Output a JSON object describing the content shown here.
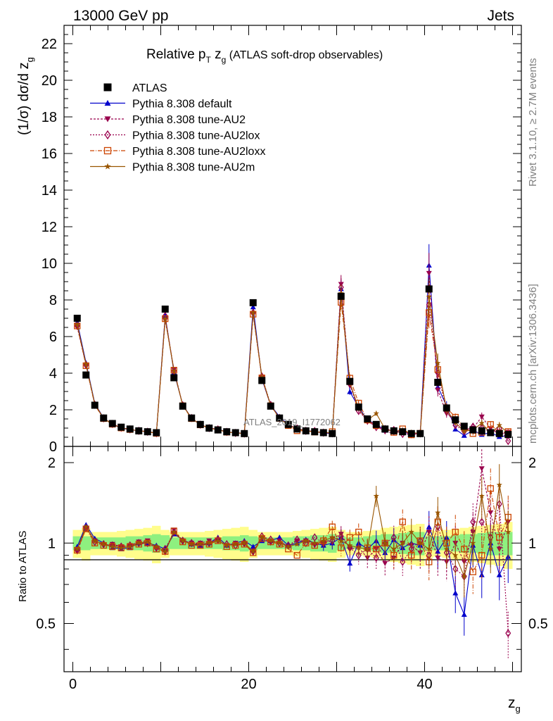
{
  "header": {
    "energy_label": "13000 GeV pp",
    "category_label": "Jets",
    "rivet_label": "Rivet 3.1.10, ≥ 2.7M events",
    "mcplots_label": "mcplots.cern.ch [arXiv:1306.3436]",
    "analysis_id": "ATLAS_2019_I1772062"
  },
  "chart_data": {
    "type": "line",
    "title_main": "Relative p",
    "title_sub_T": "T",
    "title_z": " z",
    "title_sub_g": "g",
    "title_paren": " (ATLAS soft-drop observables)",
    "ylabel": "(1/σ) dσ/d z",
    "ylabel_sub": "g",
    "xlabel": "z",
    "xlabel_sub": "g",
    "ratio_ylabel": "Ratio to ATLAS",
    "xlim": [
      -1,
      51
    ],
    "ylim": [
      0,
      23
    ],
    "ratio_ylim": [
      0.33,
      2.3
    ],
    "main_yticks": [
      "0",
      "2",
      "4",
      "6",
      "8",
      "10",
      "12",
      "14",
      "16",
      "18",
      "20",
      "22"
    ],
    "xticks": [
      "0",
      "20",
      "40"
    ],
    "ratio_yticks": [
      "0.5",
      "1",
      "2"
    ],
    "x": [
      0.5,
      1.5,
      2.5,
      3.5,
      4.5,
      5.5,
      6.5,
      7.5,
      8.5,
      9.5,
      10.5,
      11.5,
      12.5,
      13.5,
      14.5,
      15.5,
      16.5,
      17.5,
      18.5,
      19.5,
      20.5,
      21.5,
      22.5,
      23.5,
      24.5,
      25.5,
      26.5,
      27.5,
      28.5,
      29.5,
      30.5,
      31.5,
      32.5,
      33.5,
      34.5,
      35.5,
      36.5,
      37.5,
      38.5,
      39.5,
      40.5,
      41.5,
      42.5,
      43.5,
      44.5,
      45.5,
      46.5,
      47.5,
      48.5,
      49.5
    ],
    "data_series": {
      "name": "ATLAS",
      "values": [
        7.0,
        3.9,
        2.25,
        1.55,
        1.25,
        1.05,
        0.95,
        0.85,
        0.8,
        0.75,
        7.5,
        3.75,
        2.2,
        1.55,
        1.2,
        1.0,
        0.9,
        0.8,
        0.75,
        0.7,
        7.85,
        3.6,
        2.2,
        1.55,
        1.2,
        0.95,
        0.85,
        0.8,
        0.75,
        0.7,
        8.2,
        3.55,
        2.15,
        1.5,
        1.2,
        0.95,
        0.85,
        0.8,
        0.7,
        0.7,
        8.6,
        3.5,
        2.1,
        1.45,
        1.1,
        0.9,
        0.85,
        0.75,
        0.7,
        0.65
      ]
    },
    "series": [
      {
        "name": "Pythia 8.308 default",
        "color": "#0000cc",
        "marker": "triangle-up",
        "dash": "",
        "ratio": [
          0.97,
          1.17,
          1.04,
          1.0,
          0.96,
          0.95,
          0.96,
          1.0,
          1.0,
          0.98,
          0.95,
          1.08,
          1.03,
          0.99,
          0.98,
          1.0,
          1.05,
          0.98,
          1.0,
          1.02,
          0.97,
          1.02,
          1.02,
          1.05,
          0.98,
          1.0,
          1.03,
          1.0,
          0.98,
          1.0,
          1.05,
          0.84,
          1.0,
          0.95,
          1.02,
          0.92,
          1.03,
          0.96,
          1.0,
          0.98,
          1.15,
          0.93,
          1.05,
          0.65,
          0.54,
          0.98,
          0.76,
          1.0,
          0.76,
          0.89
        ]
      },
      {
        "name": "Pythia 8.308 tune-AU2",
        "color": "#99004d",
        "marker": "triangle-down",
        "dash": "3,2",
        "ratio": [
          0.93,
          1.14,
          1.02,
          0.98,
          0.99,
          0.97,
          0.98,
          1.01,
          1.02,
          0.96,
          0.92,
          1.12,
          1.02,
          1.0,
          1.0,
          1.02,
          1.02,
          0.98,
          1.0,
          0.99,
          0.92,
          1.04,
          1.0,
          1.02,
          0.97,
          1.02,
          1.02,
          0.98,
          1.0,
          1.04,
          1.08,
          0.95,
          0.96,
          0.88,
          0.95,
          0.84,
          0.88,
          1.0,
          0.98,
          0.92,
          1.1,
          0.88,
          0.85,
          1.0,
          0.85,
          1.1,
          1.9,
          1.3,
          0.95,
          1.2
        ]
      },
      {
        "name": "Pythia 8.308 tune-AU2lox",
        "color": "#99004d",
        "marker": "diamond-open",
        "dash": "2,2",
        "ratio": [
          0.94,
          1.14,
          1.01,
          0.99,
          0.98,
          0.97,
          0.98,
          1.0,
          1.0,
          0.96,
          0.95,
          1.1,
          1.02,
          1.0,
          0.99,
          1.0,
          1.03,
          0.99,
          0.98,
          1.0,
          0.93,
          1.06,
          1.03,
          1.0,
          0.98,
          1.03,
          1.0,
          1.05,
          1.0,
          1.02,
          1.06,
          0.96,
          0.9,
          0.95,
          0.88,
          1.0,
          1.05,
          0.85,
          0.95,
          1.02,
          0.9,
          1.15,
          0.92,
          0.8,
          0.75,
          1.2,
          1.2,
          1.05,
          1.4,
          0.46
        ]
      },
      {
        "name": "Pythia 8.308 tune-AU2loxx",
        "color": "#cc4400",
        "marker": "square-open",
        "dash": "6,2,1,2",
        "ratio": [
          0.94,
          1.13,
          1.0,
          0.98,
          0.97,
          0.96,
          0.97,
          0.99,
          1.0,
          0.95,
          0.93,
          1.11,
          1.01,
          0.98,
          0.98,
          0.99,
          1.02,
          0.97,
          0.98,
          0.99,
          0.92,
          1.04,
          1.01,
          0.99,
          0.95,
          0.9,
          1.0,
          0.98,
          1.02,
          1.15,
          0.96,
          1.05,
          1.1,
          0.96,
          0.95,
          1.0,
          0.9,
          1.2,
          0.9,
          1.02,
          0.85,
          1.2,
          1.0,
          1.1,
          0.95,
          0.78,
          0.9,
          1.6,
          1.05,
          1.25
        ]
      },
      {
        "name": "Pythia 8.308 tune-AU2m",
        "color": "#995500",
        "marker": "star",
        "dash": "",
        "ratio": [
          0.95,
          1.15,
          1.02,
          0.99,
          0.97,
          0.96,
          0.97,
          1.0,
          1.01,
          0.97,
          0.93,
          1.1,
          1.02,
          0.99,
          0.99,
          1.0,
          1.02,
          0.98,
          0.99,
          1.0,
          0.93,
          1.05,
          1.02,
          1.0,
          0.97,
          0.99,
          1.02,
          1.0,
          1.02,
          1.05,
          1.02,
          0.98,
          0.96,
          0.95,
          1.5,
          1.0,
          0.95,
          1.0,
          1.1,
          1.0,
          0.95,
          1.3,
          0.95,
          0.9,
          0.75,
          1.0,
          1.5,
          0.95,
          1.65,
          1.1
        ]
      }
    ],
    "ratio_error_band": {
      "inner": [
        0.06,
        0.06,
        0.05,
        0.05,
        0.05,
        0.05,
        0.06,
        0.06,
        0.07,
        0.08,
        0.07,
        0.05,
        0.05,
        0.05,
        0.05,
        0.05,
        0.05,
        0.06,
        0.06,
        0.07,
        0.06,
        0.05,
        0.05,
        0.05,
        0.05,
        0.06,
        0.06,
        0.07,
        0.07,
        0.08,
        0.06,
        0.05,
        0.05,
        0.06,
        0.07,
        0.08,
        0.08,
        0.09,
        0.1,
        0.1,
        0.06,
        0.06,
        0.06,
        0.07,
        0.08,
        0.08,
        0.09,
        0.1,
        0.1,
        0.1
      ],
      "outer": [
        0.12,
        0.14,
        0.1,
        0.1,
        0.1,
        0.11,
        0.12,
        0.13,
        0.14,
        0.16,
        0.12,
        0.1,
        0.1,
        0.1,
        0.1,
        0.11,
        0.12,
        0.13,
        0.14,
        0.15,
        0.12,
        0.1,
        0.1,
        0.1,
        0.1,
        0.11,
        0.12,
        0.13,
        0.14,
        0.15,
        0.12,
        0.1,
        0.1,
        0.11,
        0.12,
        0.14,
        0.15,
        0.16,
        0.17,
        0.18,
        0.12,
        0.11,
        0.12,
        0.13,
        0.14,
        0.15,
        0.16,
        0.17,
        0.18,
        0.2
      ]
    },
    "legend_position": "top-left",
    "grid": false
  }
}
